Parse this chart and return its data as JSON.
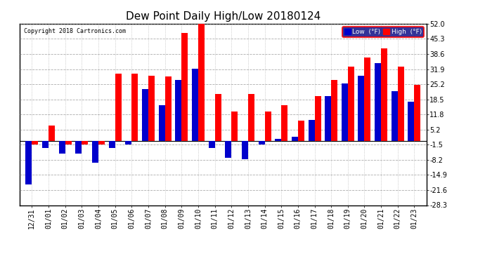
{
  "title": "Dew Point Daily High/Low 20180124",
  "copyright": "Copyright 2018 Cartronics.com",
  "labels": [
    "12/31",
    "01/01",
    "01/02",
    "01/03",
    "01/04",
    "01/05",
    "01/06",
    "01/07",
    "01/08",
    "01/09",
    "01/10",
    "01/11",
    "01/12",
    "01/13",
    "01/14",
    "01/15",
    "01/16",
    "01/17",
    "01/18",
    "01/19",
    "01/20",
    "01/21",
    "01/22",
    "01/23"
  ],
  "high": [
    -1.5,
    7.0,
    -1.5,
    -1.5,
    -1.5,
    30.0,
    30.0,
    29.0,
    28.5,
    48.0,
    52.0,
    21.0,
    13.0,
    21.0,
    13.0,
    16.0,
    9.0,
    20.0,
    27.0,
    33.0,
    37.0,
    41.0,
    33.0,
    25.0
  ],
  "low": [
    -19.0,
    -3.0,
    -5.5,
    -5.5,
    -9.5,
    -3.0,
    -1.5,
    23.0,
    16.0,
    27.0,
    32.0,
    -3.0,
    -7.5,
    -8.0,
    -1.5,
    1.0,
    2.0,
    9.5,
    20.0,
    25.5,
    29.0,
    34.5,
    22.0,
    17.5
  ],
  "ylim": [
    -28.3,
    52.0
  ],
  "yticks": [
    -28.3,
    -21.6,
    -14.9,
    -8.2,
    -1.5,
    5.2,
    11.8,
    18.5,
    25.2,
    31.9,
    38.6,
    45.3,
    52.0
  ],
  "bar_width": 0.38,
  "high_color": "#ff0000",
  "low_color": "#0000cc",
  "bg_color": "#ffffff",
  "grid_color": "#888888",
  "title_fontsize": 11,
  "tick_fontsize": 7
}
